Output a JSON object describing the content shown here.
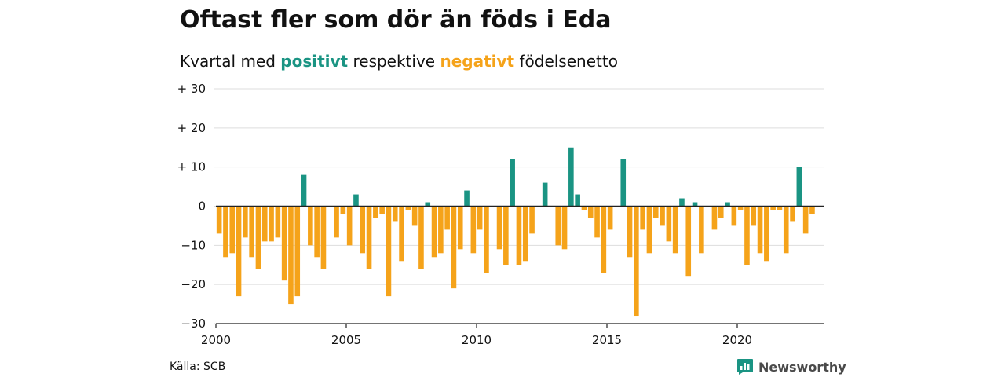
{
  "title": "Oftast fler som dör än föds i Eda",
  "subtitle": {
    "prefix": "Kvartal med ",
    "positive_word": "positivt",
    "middle": " respektive ",
    "negative_word": "negativt",
    "suffix": " födelsenetto"
  },
  "source": "Källa: SCB",
  "brand": {
    "name": "Newsworthy",
    "icon": "newsworthy-logo-icon"
  },
  "colors": {
    "positive": "#1a9483",
    "negative": "#f5a31a",
    "grid": "#dddddd",
    "axis": "#222222",
    "brand": "#1a9483"
  },
  "chart_data": {
    "type": "bar",
    "x_start_year": 2000,
    "periods_per_year": 4,
    "x_ticks": [
      "2000",
      "2005",
      "2010",
      "2015",
      "2020"
    ],
    "y_ticks": [
      {
        "value": 30,
        "label": "+ 30"
      },
      {
        "value": 20,
        "label": "+ 20"
      },
      {
        "value": 10,
        "label": "+ 10"
      },
      {
        "value": 0,
        "label": "0"
      },
      {
        "value": -10,
        "label": "−10"
      },
      {
        "value": -20,
        "label": "−20"
      },
      {
        "value": -30,
        "label": "−30"
      }
    ],
    "ylim": [
      -30,
      30
    ],
    "grid": true,
    "values": [
      -7,
      -13,
      -12,
      -23,
      -8,
      -13,
      -16,
      -9,
      -9,
      -8,
      -19,
      -25,
      -23,
      8,
      -10,
      -13,
      -16,
      0,
      -8,
      -2,
      -10,
      3,
      -12,
      -16,
      -3,
      -2,
      -23,
      -4,
      -14,
      -1,
      -5,
      -16,
      1,
      -13,
      -12,
      -6,
      -21,
      -11,
      4,
      -12,
      -6,
      -17,
      0,
      -11,
      -15,
      12,
      -15,
      -14,
      -7,
      0,
      6,
      0,
      -10,
      -11,
      15,
      3,
      -1,
      -3,
      -8,
      -17,
      -6,
      0,
      12,
      -13,
      -28,
      -6,
      -12,
      -3,
      -5,
      -9,
      -12,
      2,
      -18,
      1,
      -12,
      0,
      -6,
      -3,
      1,
      -5,
      -1,
      -15,
      -5,
      -12,
      -14,
      -1,
      -1,
      -12,
      -4,
      10,
      -7,
      -2
    ]
  }
}
